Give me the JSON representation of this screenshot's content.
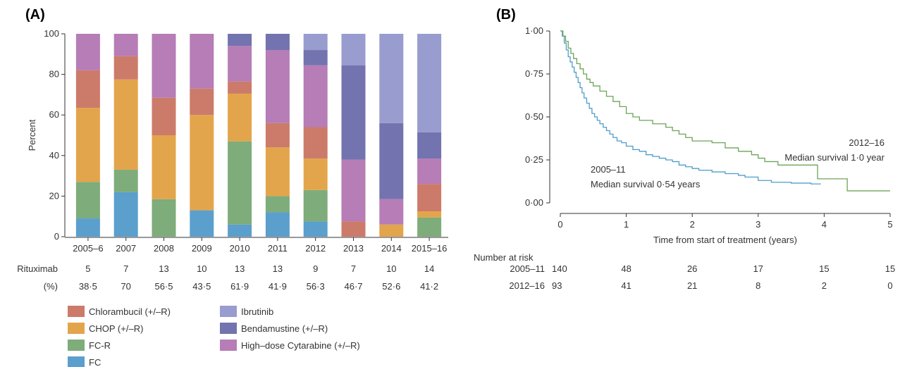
{
  "chart_data": [
    {
      "panel_label": "(A)",
      "type": "bar",
      "stacked": true,
      "ylabel": "Percent",
      "ylim": [
        0,
        100
      ],
      "yticks": [
        "0",
        "20",
        "40",
        "60",
        "80",
        "100"
      ],
      "categories": [
        "2005–6",
        "2007",
        "2008",
        "2009",
        "2010",
        "2011",
        "2012",
        "2013",
        "2014",
        "2015–16"
      ],
      "series": [
        {
          "name": "FC",
          "color": "#5b9fcd",
          "values": [
            9,
            22,
            0,
            13,
            6,
            12,
            7.5,
            0,
            0,
            0
          ]
        },
        {
          "name": "FC-R",
          "color": "#7eac7a",
          "values": [
            18,
            11,
            18.5,
            0,
            41,
            8,
            15.5,
            0,
            0,
            9.5
          ]
        },
        {
          "name": "CHOP (+/–R)",
          "color": "#e3a54b",
          "values": [
            36.5,
            44.5,
            31.5,
            47,
            23.5,
            24,
            15.5,
            0,
            6,
            3
          ]
        },
        {
          "name": "Chlorambucil (+/–R)",
          "color": "#cc7b6a",
          "values": [
            18.5,
            11.5,
            18.5,
            13,
            6,
            12,
            15.5,
            7.5,
            0,
            13.5
          ]
        },
        {
          "name": "High–dose Cytarabine (+/–R)",
          "color": "#b67db6",
          "values": [
            18,
            11,
            31.5,
            27,
            17.5,
            36,
            30.5,
            30.5,
            12.5,
            12.5
          ]
        },
        {
          "name": "Bendamustine (+/–R)",
          "color": "#7373af",
          "values": [
            0,
            0,
            0,
            0,
            6,
            8,
            7.5,
            46.5,
            37.5,
            13
          ]
        },
        {
          "name": "Ibrutinib",
          "color": "#999cce",
          "values": [
            0,
            0,
            0,
            0,
            0,
            0,
            8,
            15.5,
            44,
            48.5
          ]
        }
      ],
      "rituximab": {
        "label": "Rituximab",
        "pct_label": "(%)",
        "counts": [
          "5",
          "7",
          "13",
          "10",
          "13",
          "13",
          "9",
          "7",
          "10",
          "14"
        ],
        "percents": [
          "38·5",
          "70",
          "56·5",
          "43·5",
          "61·9",
          "41·9",
          "56·3",
          "46·7",
          "52·6",
          "41·2"
        ]
      },
      "legend": [
        {
          "name": "Chlorambucil (+/–R)",
          "color": "#cc7b6a"
        },
        {
          "name": "CHOP (+/–R)",
          "color": "#e3a54b"
        },
        {
          "name": "FC-R",
          "color": "#7eac7a"
        },
        {
          "name": "FC",
          "color": "#5b9fcd"
        },
        {
          "name": "Ibrutinib",
          "color": "#999cce"
        },
        {
          "name": "Bendamustine (+/–R)",
          "color": "#7373af"
        },
        {
          "name": "High–dose Cytarabine (+/–R)",
          "color": "#b67db6"
        }
      ]
    },
    {
      "panel_label": "(B)",
      "type": "line",
      "subtype": "kaplan-meier",
      "xlabel": "Time from start of treatment (years)",
      "xlim": [
        0,
        5
      ],
      "xticks": [
        "0",
        "1",
        "2",
        "3",
        "4",
        "5"
      ],
      "ylim": [
        0,
        1
      ],
      "yticks": [
        "0·00",
        "0·25",
        "0·50",
        "0·75",
        "1·00"
      ],
      "series": [
        {
          "name": "2005–11",
          "annotation": "Median survival 0·54 years",
          "color": "#4e9ec9",
          "points": [
            [
              0,
              1
            ],
            [
              0.03,
              0.97
            ],
            [
              0.06,
              0.93
            ],
            [
              0.09,
              0.89
            ],
            [
              0.12,
              0.85
            ],
            [
              0.15,
              0.82
            ],
            [
              0.18,
              0.79
            ],
            [
              0.21,
              0.76
            ],
            [
              0.24,
              0.73
            ],
            [
              0.27,
              0.7
            ],
            [
              0.3,
              0.67
            ],
            [
              0.33,
              0.64
            ],
            [
              0.36,
              0.61
            ],
            [
              0.4,
              0.58
            ],
            [
              0.44,
              0.55
            ],
            [
              0.48,
              0.52
            ],
            [
              0.52,
              0.5
            ],
            [
              0.56,
              0.48
            ],
            [
              0.6,
              0.46
            ],
            [
              0.65,
              0.44
            ],
            [
              0.7,
              0.42
            ],
            [
              0.75,
              0.4
            ],
            [
              0.8,
              0.38
            ],
            [
              0.86,
              0.36
            ],
            [
              0.93,
              0.35
            ],
            [
              1.0,
              0.33
            ],
            [
              1.1,
              0.31
            ],
            [
              1.2,
              0.3
            ],
            [
              1.3,
              0.28
            ],
            [
              1.4,
              0.27
            ],
            [
              1.5,
              0.26
            ],
            [
              1.6,
              0.25
            ],
            [
              1.7,
              0.24
            ],
            [
              1.8,
              0.22
            ],
            [
              1.9,
              0.21
            ],
            [
              2.0,
              0.2
            ],
            [
              2.1,
              0.19
            ],
            [
              2.3,
              0.18
            ],
            [
              2.5,
              0.17
            ],
            [
              2.7,
              0.16
            ],
            [
              2.8,
              0.15
            ],
            [
              3.0,
              0.13
            ],
            [
              3.2,
              0.12
            ],
            [
              3.5,
              0.115
            ],
            [
              3.8,
              0.11
            ],
            [
              3.95,
              0.11
            ]
          ]
        },
        {
          "name": "2012–16",
          "annotation": "Median survival 1·0 year",
          "color": "#6ea35a",
          "points": [
            [
              0,
              1
            ],
            [
              0.04,
              0.97
            ],
            [
              0.08,
              0.94
            ],
            [
              0.12,
              0.9
            ],
            [
              0.16,
              0.87
            ],
            [
              0.2,
              0.84
            ],
            [
              0.25,
              0.81
            ],
            [
              0.3,
              0.78
            ],
            [
              0.35,
              0.75
            ],
            [
              0.4,
              0.72
            ],
            [
              0.45,
              0.7
            ],
            [
              0.5,
              0.68
            ],
            [
              0.6,
              0.65
            ],
            [
              0.7,
              0.62
            ],
            [
              0.8,
              0.59
            ],
            [
              0.9,
              0.56
            ],
            [
              1.0,
              0.52
            ],
            [
              1.1,
              0.5
            ],
            [
              1.2,
              0.48
            ],
            [
              1.4,
              0.46
            ],
            [
              1.6,
              0.44
            ],
            [
              1.7,
              0.42
            ],
            [
              1.8,
              0.4
            ],
            [
              1.9,
              0.38
            ],
            [
              2.0,
              0.36
            ],
            [
              2.3,
              0.35
            ],
            [
              2.5,
              0.32
            ],
            [
              2.7,
              0.3
            ],
            [
              2.9,
              0.28
            ],
            [
              3.0,
              0.26
            ],
            [
              3.1,
              0.24
            ],
            [
              3.3,
              0.22
            ],
            [
              3.8,
              0.22
            ],
            [
              3.9,
              0.14
            ],
            [
              4.3,
              0.14
            ],
            [
              4.35,
              0.07
            ],
            [
              5.0,
              0.07
            ]
          ]
        }
      ],
      "risk_table": {
        "title": "Number at risk",
        "rows": [
          {
            "label": "2005–11",
            "values": [
              "140",
              "48",
              "26",
              "17",
              "15",
              "15"
            ]
          },
          {
            "label": "2012–16",
            "values": [
              "93",
              "41",
              "21",
              "8",
              "2",
              "0"
            ]
          }
        ]
      }
    }
  ]
}
